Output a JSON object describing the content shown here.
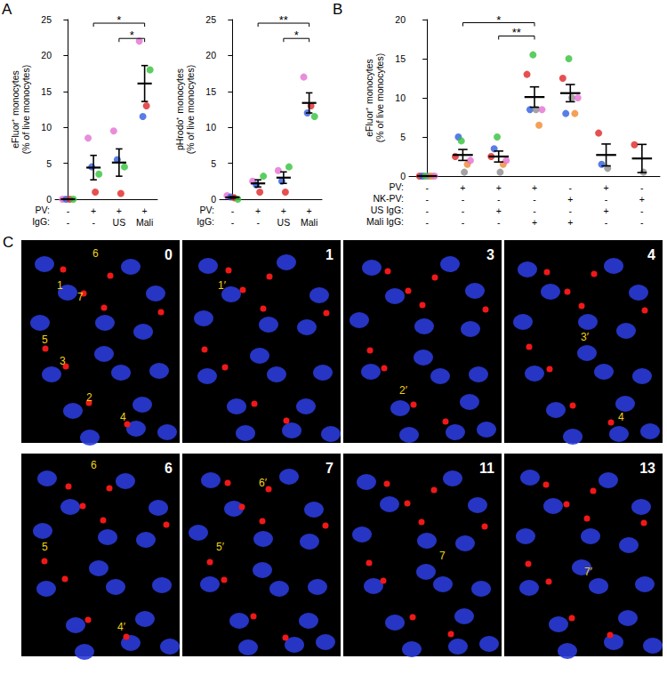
{
  "chart_data": [
    {
      "type": "scatter",
      "panel": "A",
      "ylabel": "eFluor⁺ monocytes\n(% of live monocytes)",
      "ylim": [
        0,
        25
      ],
      "yticks": [
        0,
        5,
        10,
        15,
        20,
        25
      ],
      "grid": false,
      "rows": [
        {
          "label": "PV:",
          "values": [
            "-",
            "+",
            "+",
            "+"
          ]
        },
        {
          "label": "IgG:",
          "values": [
            "-",
            "-",
            "US",
            "Mali"
          ]
        }
      ],
      "series": [
        {
          "color": "#e46fd2",
          "values": [
            0,
            8.5,
            9.5,
            22
          ]
        },
        {
          "color": "#2f5de0",
          "values": [
            0,
            4.5,
            5.5,
            11.5
          ]
        },
        {
          "color": "#e02424",
          "values": [
            0,
            1.0,
            0.8,
            13
          ]
        },
        {
          "color": "#33c23a",
          "values": [
            0,
            3.5,
            4.5,
            18
          ]
        }
      ],
      "means": [
        0,
        4.4,
        5.1,
        16.1
      ],
      "sem": [
        0,
        1.7,
        1.9,
        2.5
      ],
      "significance": [
        {
          "from": 1,
          "to": 3,
          "label": "*"
        },
        {
          "from": 2,
          "to": 3,
          "label": "*"
        }
      ]
    },
    {
      "type": "scatter",
      "ylabel": "pHrodo⁺ monocytes\n(% of live monocytes)",
      "ylim": [
        0,
        25
      ],
      "yticks": [
        0,
        5,
        10,
        15,
        20,
        25
      ],
      "grid": false,
      "rows": [
        {
          "label": "PV:",
          "values": [
            "-",
            "+",
            "+",
            "+"
          ]
        },
        {
          "label": "IgG:",
          "values": [
            "-",
            "-",
            "US",
            "Mali"
          ]
        }
      ],
      "series": [
        {
          "color": "#e46fd2",
          "values": [
            0.5,
            2.5,
            4.0,
            17
          ]
        },
        {
          "color": "#2f5de0",
          "values": [
            0.3,
            2.0,
            2.5,
            12
          ]
        },
        {
          "color": "#e02424",
          "values": [
            0.2,
            1.0,
            1.0,
            13
          ]
        },
        {
          "color": "#33c23a",
          "values": [
            0,
            3.2,
            4.5,
            11.5
          ]
        }
      ],
      "means": [
        0.25,
        2.2,
        3.0,
        13.4
      ],
      "sem": [
        0.1,
        0.5,
        0.8,
        1.4
      ],
      "significance": [
        {
          "from": 1,
          "to": 3,
          "label": "**"
        },
        {
          "from": 2,
          "to": 3,
          "label": "*"
        }
      ]
    },
    {
      "type": "scatter",
      "panel": "B",
      "ylabel": "eFluor⁺ monocytes\n(% of live monocytes)",
      "ylim": [
        0,
        20
      ],
      "yticks": [
        0,
        5,
        10,
        15,
        20
      ],
      "grid": false,
      "rows": [
        {
          "label": "PV:",
          "values": [
            "-",
            "+",
            "+",
            "+",
            "-",
            "+",
            "-"
          ]
        },
        {
          "label": "NK-PV:",
          "values": [
            "-",
            "-",
            "-",
            "-",
            "+",
            "-",
            "+"
          ]
        },
        {
          "label": "US IgG:",
          "values": [
            "-",
            "-",
            "+",
            "-",
            "-",
            "+",
            "-"
          ]
        },
        {
          "label": "Mali IgG:",
          "values": [
            "-",
            "-",
            "-",
            "+",
            "+",
            "-",
            "-"
          ]
        }
      ],
      "series": [
        {
          "color": "#e02424",
          "values": [
            0,
            2.5,
            2.5,
            13,
            12.5,
            5.5,
            4
          ]
        },
        {
          "color": "#2f5de0",
          "values": [
            0,
            5,
            3.5,
            8.5,
            8,
            1.5,
            null
          ]
        },
        {
          "color": "#33c23a",
          "values": [
            0,
            4.5,
            5,
            15.5,
            15,
            null,
            null
          ]
        },
        {
          "color": "#8c8c8c",
          "values": [
            0,
            0.5,
            0.5,
            8.5,
            10,
            1,
            0.5
          ]
        },
        {
          "color": "#f08a30",
          "values": [
            0,
            1.5,
            1.5,
            6.5,
            8,
            null,
            null
          ]
        },
        {
          "color": "#e46fd2",
          "values": [
            0,
            2,
            2,
            8.5,
            10,
            null,
            null
          ]
        }
      ],
      "means": [
        0,
        2.7,
        2.5,
        10.1,
        10.6,
        2.7,
        2.25
      ],
      "sem": [
        0,
        0.7,
        0.7,
        1.3,
        1.1,
        1.4,
        1.8
      ],
      "significance": [
        {
          "from": 1,
          "to": 3,
          "label": "*"
        },
        {
          "from": 2,
          "to": 3,
          "label": "**"
        }
      ]
    }
  ],
  "panel_c": {
    "panel": "C",
    "frames": [
      {
        "time": "0",
        "labels": [
          "6",
          "1",
          "7",
          "5",
          "3",
          "2",
          "4"
        ]
      },
      {
        "time": "1",
        "labels": [
          "1′"
        ]
      },
      {
        "time": "3",
        "labels": [
          "2′"
        ]
      },
      {
        "time": "4",
        "labels": [
          "3′",
          "4"
        ]
      },
      {
        "time": "6",
        "labels": [
          "6",
          "5",
          "4′"
        ]
      },
      {
        "time": "7",
        "labels": [
          "6′",
          "5′"
        ]
      },
      {
        "time": "11",
        "labels": [
          "7"
        ]
      },
      {
        "time": "13",
        "labels": [
          "7′"
        ]
      }
    ]
  }
}
